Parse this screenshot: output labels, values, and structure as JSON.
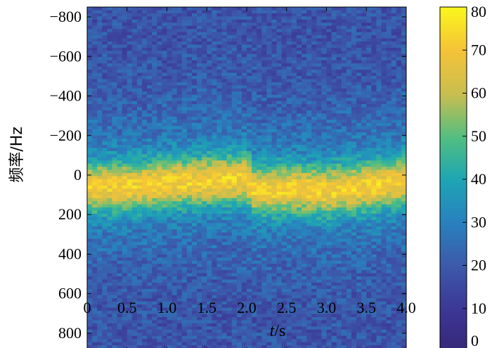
{
  "chart_data": {
    "type": "heatmap",
    "title": "",
    "xlabel": {
      "italic": "t",
      "rest": "/s"
    },
    "ylabel": "频率/Hz",
    "xlim": [
      0,
      4.0
    ],
    "ylim": [
      -850,
      850
    ],
    "y_inverted": true,
    "x_ticks": [
      "0",
      "0.5",
      "1.0",
      "1.5",
      "2.0",
      "2.5",
      "3.0",
      "3.5",
      "4.0"
    ],
    "x_tick_values": [
      0,
      0.5,
      1.0,
      1.5,
      2.0,
      2.5,
      3.0,
      3.5,
      4.0
    ],
    "y_ticks": [
      "-800",
      "-600",
      "-400",
      "-200",
      "0",
      "200",
      "400",
      "600",
      "800"
    ],
    "y_tick_values": [
      -800,
      -600,
      -400,
      -200,
      0,
      200,
      400,
      600,
      800
    ],
    "colorbar": {
      "range": [
        0,
        80
      ],
      "ticks": [
        "0",
        "10",
        "20",
        "30",
        "40",
        "50",
        "60",
        "70",
        "80"
      ],
      "tick_values": [
        0,
        10,
        20,
        30,
        40,
        50,
        60,
        70,
        80
      ],
      "colormap": "viridis"
    },
    "signal_band": {
      "description_values": "peak intensity about 70-75 near center frequency",
      "center_hz": [
        {
          "t": 0.0,
          "hz": 60
        },
        {
          "t": 0.5,
          "hz": 60
        },
        {
          "t": 1.0,
          "hz": 40
        },
        {
          "t": 1.5,
          "hz": 30
        },
        {
          "t": 2.0,
          "hz": 20
        },
        {
          "t": 2.1,
          "hz": 80
        },
        {
          "t": 2.5,
          "hz": 70
        },
        {
          "t": 3.0,
          "hz": 80
        },
        {
          "t": 3.5,
          "hz": 60
        },
        {
          "t": 4.0,
          "hz": 30
        }
      ],
      "peak_value": 72,
      "background_value": 18
    }
  }
}
